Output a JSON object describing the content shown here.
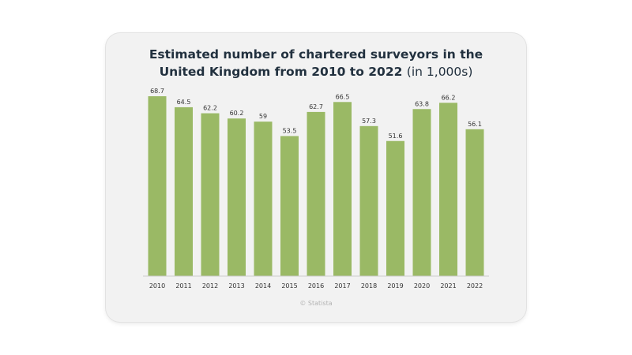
{
  "chart_data": {
    "type": "bar",
    "title_line1": "Estimated number of chartered surveyors in the",
    "title_line2": "United Kingdom from 2010 to 2022",
    "title_unit": "(in 1,000s)",
    "categories": [
      "2010",
      "2011",
      "2012",
      "2013",
      "2014",
      "2015",
      "2016",
      "2017",
      "2018",
      "2019",
      "2020",
      "2021",
      "2022"
    ],
    "values": [
      68.7,
      64.5,
      62.2,
      60.2,
      59,
      53.5,
      62.7,
      66.5,
      57.3,
      51.6,
      63.8,
      66.2,
      56.1
    ],
    "value_labels": [
      "68.7",
      "64.5",
      "62.2",
      "60.2",
      "59",
      "53.5",
      "62.7",
      "66.5",
      "57.3",
      "51.6",
      "63.8",
      "66.2",
      "56.1"
    ],
    "bar_color": "#9ab965",
    "ylim": [
      0,
      68.7
    ],
    "grid": false,
    "legend": "none"
  },
  "footer": {
    "credit": "© Statista"
  }
}
